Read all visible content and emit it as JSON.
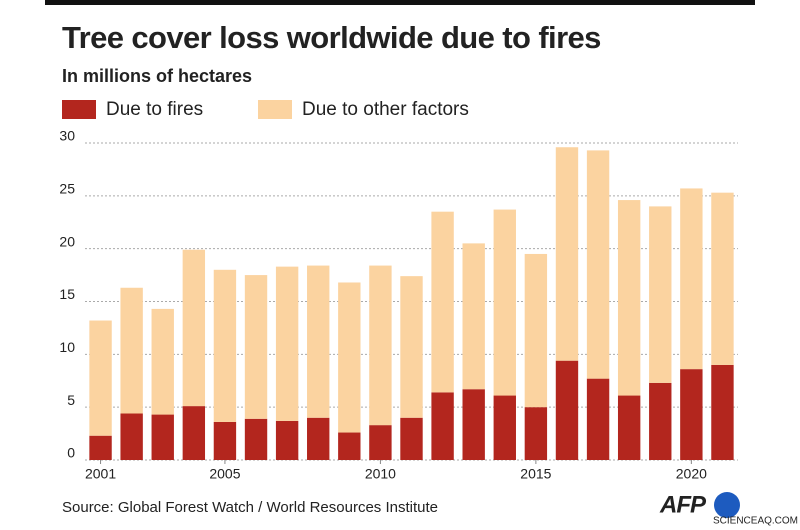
{
  "chart_data": {
    "type": "stacked-bar",
    "title": "Tree cover loss worldwide due to fires",
    "subtitle": "In millions of hectares",
    "x": [
      2001,
      2002,
      2003,
      2004,
      2005,
      2006,
      2007,
      2008,
      2009,
      2010,
      2011,
      2012,
      2013,
      2014,
      2015,
      2016,
      2017,
      2018,
      2019,
      2020,
      2021
    ],
    "xlim": [
      2000.5,
      2021.5
    ],
    "xticks": [
      2001,
      2005,
      2010,
      2015,
      2020
    ],
    "series": [
      {
        "name": "Due to fires",
        "color": "#b3261e",
        "values": [
          2.3,
          4.4,
          4.3,
          5.1,
          3.6,
          3.9,
          3.7,
          4.0,
          2.6,
          3.3,
          4.0,
          6.4,
          6.7,
          6.1,
          5.0,
          9.4,
          7.7,
          6.1,
          7.3,
          8.6,
          9.0
        ]
      },
      {
        "name": "Due to other factors",
        "color": "#fbd3a0",
        "values": [
          10.9,
          11.9,
          10.0,
          14.8,
          14.4,
          13.6,
          14.6,
          14.4,
          14.2,
          15.1,
          13.4,
          17.1,
          13.8,
          17.6,
          14.5,
          20.2,
          21.6,
          18.5,
          16.7,
          17.1,
          16.3
        ]
      }
    ],
    "ylim": [
      0,
      30
    ],
    "yticks": [
      0,
      5,
      10,
      15,
      20,
      25,
      30
    ],
    "grid": true,
    "source": "Source: Global Forest Watch / World Resources Institute",
    "logo": "AFP",
    "watermark": "SCIENCEAQ.COM"
  }
}
